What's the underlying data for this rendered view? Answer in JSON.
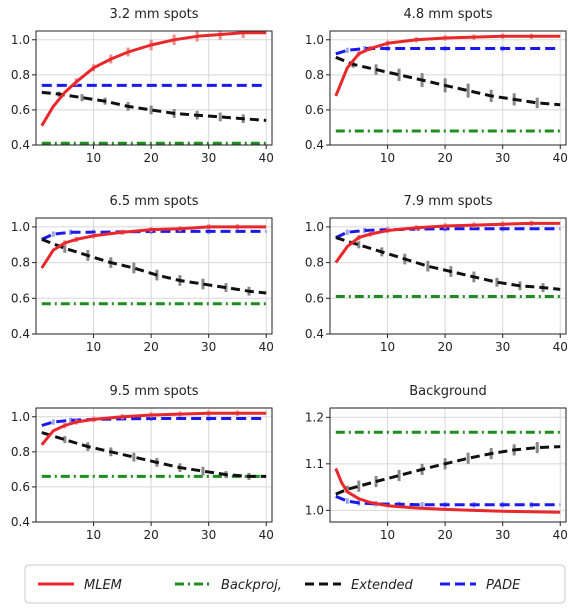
{
  "chart_data": [
    {
      "type": "line",
      "title": "3.2 mm spots",
      "xlim": [
        0,
        41
      ],
      "ylim": [
        0.4,
        1.05
      ],
      "xticks": [
        10,
        20,
        30,
        40
      ],
      "xtick_labels": [
        "10",
        "20",
        "30",
        "40"
      ],
      "yticks": [
        0.4,
        0.6,
        0.8,
        1.0
      ],
      "ytick_labels": [
        "0.4",
        "0.6",
        "0.8",
        "1.0"
      ],
      "grid": true,
      "series": [
        {
          "name": "MLEM",
          "x": [
            1,
            3,
            5,
            7,
            10,
            13,
            16,
            20,
            24,
            28,
            32,
            36,
            40
          ],
          "y": [
            0.51,
            0.62,
            0.7,
            0.76,
            0.84,
            0.89,
            0.93,
            0.97,
            1.0,
            1.02,
            1.03,
            1.04,
            1.04
          ],
          "err": [
            0,
            0,
            0,
            0.02,
            0.02,
            0.025,
            0.025,
            0.03,
            0.03,
            0.03,
            0.03,
            0.03,
            0
          ]
        },
        {
          "name": "Backproj,",
          "x": [
            1,
            40
          ],
          "y": [
            0.41,
            0.41
          ],
          "err": [
            0,
            0
          ]
        },
        {
          "name": "Extended",
          "x": [
            1,
            4,
            8,
            12,
            16,
            20,
            24,
            28,
            32,
            36,
            40
          ],
          "y": [
            0.7,
            0.69,
            0.67,
            0.65,
            0.62,
            0.6,
            0.58,
            0.57,
            0.56,
            0.55,
            0.54
          ],
          "err": [
            0,
            0.015,
            0.02,
            0.02,
            0.025,
            0.025,
            0.025,
            0.025,
            0.025,
            0.025,
            0
          ]
        },
        {
          "name": "PADE",
          "x": [
            1,
            40
          ],
          "y": [
            0.74,
            0.74
          ],
          "err": [
            0,
            0
          ]
        }
      ]
    },
    {
      "type": "line",
      "title": "4.8 mm spots",
      "xlim": [
        0,
        41
      ],
      "ylim": [
        0.4,
        1.05
      ],
      "xticks": [
        10,
        20,
        30,
        40
      ],
      "xtick_labels": [
        "10",
        "20",
        "30",
        "40"
      ],
      "yticks": [
        0.4,
        0.6,
        0.8,
        1.0
      ],
      "ytick_labels": [
        "0.4",
        "0.6",
        "0.8",
        "1.0"
      ],
      "grid": true,
      "series": [
        {
          "name": "MLEM",
          "x": [
            1,
            3,
            5,
            7,
            10,
            15,
            20,
            25,
            30,
            35,
            40
          ],
          "y": [
            0.68,
            0.84,
            0.92,
            0.95,
            0.98,
            1.0,
            1.01,
            1.015,
            1.02,
            1.02,
            1.02
          ],
          "err": [
            0,
            0,
            0.015,
            0.015,
            0.015,
            0.015,
            0.015,
            0.015,
            0.015,
            0.015,
            0
          ]
        },
        {
          "name": "Backproj,",
          "x": [
            1,
            40
          ],
          "y": [
            0.48,
            0.48
          ],
          "err": [
            0,
            0
          ]
        },
        {
          "name": "Extended",
          "x": [
            1,
            4,
            8,
            12,
            16,
            20,
            24,
            28,
            32,
            36,
            40
          ],
          "y": [
            0.9,
            0.86,
            0.83,
            0.8,
            0.77,
            0.74,
            0.71,
            0.68,
            0.66,
            0.64,
            0.63
          ],
          "err": [
            0,
            0.02,
            0.03,
            0.035,
            0.04,
            0.04,
            0.04,
            0.035,
            0.035,
            0.03,
            0
          ]
        },
        {
          "name": "PADE",
          "x": [
            1,
            3,
            6,
            10,
            20,
            30,
            40
          ],
          "y": [
            0.92,
            0.94,
            0.95,
            0.95,
            0.95,
            0.95,
            0.95
          ],
          "err": [
            0,
            0.015,
            0.015,
            0.015,
            0.015,
            0.015,
            0
          ]
        }
      ]
    },
    {
      "type": "line",
      "title": "6.5 mm spots",
      "xlim": [
        0,
        41
      ],
      "ylim": [
        0.4,
        1.05
      ],
      "xticks": [
        10,
        20,
        30,
        40
      ],
      "xtick_labels": [
        "10",
        "20",
        "30",
        "40"
      ],
      "yticks": [
        0.4,
        0.6,
        0.8,
        1.0
      ],
      "ytick_labels": [
        "0.4",
        "0.6",
        "0.8",
        "1.0"
      ],
      "grid": true,
      "series": [
        {
          "name": "MLEM",
          "x": [
            1,
            3,
            5,
            7,
            10,
            15,
            20,
            25,
            30,
            35,
            40
          ],
          "y": [
            0.77,
            0.87,
            0.91,
            0.93,
            0.95,
            0.97,
            0.985,
            0.99,
            1.0,
            1.0,
            1.0
          ],
          "err": [
            0,
            0,
            0.015,
            0.015,
            0.015,
            0.015,
            0.015,
            0.015,
            0.015,
            0.015,
            0
          ]
        },
        {
          "name": "Backproj,",
          "x": [
            1,
            40
          ],
          "y": [
            0.57,
            0.57
          ],
          "err": [
            0,
            0
          ]
        },
        {
          "name": "Extended",
          "x": [
            1,
            5,
            9,
            13,
            17,
            21,
            25,
            29,
            33,
            37,
            40
          ],
          "y": [
            0.93,
            0.88,
            0.84,
            0.8,
            0.77,
            0.73,
            0.7,
            0.68,
            0.66,
            0.64,
            0.63
          ],
          "err": [
            0,
            0.025,
            0.03,
            0.03,
            0.03,
            0.03,
            0.03,
            0.03,
            0.025,
            0.025,
            0
          ]
        },
        {
          "name": "PADE",
          "x": [
            1,
            3,
            6,
            10,
            20,
            30,
            40
          ],
          "y": [
            0.93,
            0.96,
            0.97,
            0.97,
            0.975,
            0.975,
            0.975
          ],
          "err": [
            0,
            0.015,
            0.015,
            0.015,
            0.015,
            0.015,
            0
          ]
        }
      ]
    },
    {
      "type": "line",
      "title": "7.9 mm spots",
      "xlim": [
        0,
        41
      ],
      "ylim": [
        0.4,
        1.05
      ],
      "xticks": [
        10,
        20,
        30,
        40
      ],
      "xtick_labels": [
        "10",
        "20",
        "30",
        "40"
      ],
      "yticks": [
        0.4,
        0.6,
        0.8,
        1.0
      ],
      "ytick_labels": [
        "0.4",
        "0.6",
        "0.8",
        "1.0"
      ],
      "grid": true,
      "series": [
        {
          "name": "MLEM",
          "x": [
            1,
            3,
            5,
            7,
            10,
            15,
            20,
            25,
            30,
            35,
            40
          ],
          "y": [
            0.8,
            0.89,
            0.94,
            0.96,
            0.98,
            0.995,
            1.005,
            1.01,
            1.015,
            1.02,
            1.02
          ],
          "err": [
            0,
            0,
            0.015,
            0.015,
            0.015,
            0.015,
            0.015,
            0.015,
            0.015,
            0.015,
            0
          ]
        },
        {
          "name": "Backproj,",
          "x": [
            1,
            40
          ],
          "y": [
            0.61,
            0.61
          ],
          "err": [
            0,
            0
          ]
        },
        {
          "name": "Extended",
          "x": [
            1,
            5,
            9,
            13,
            17,
            21,
            25,
            29,
            33,
            37,
            40
          ],
          "y": [
            0.94,
            0.9,
            0.86,
            0.82,
            0.78,
            0.75,
            0.72,
            0.69,
            0.67,
            0.66,
            0.65
          ],
          "err": [
            0,
            0.02,
            0.025,
            0.03,
            0.03,
            0.03,
            0.03,
            0.025,
            0.025,
            0.025,
            0
          ]
        },
        {
          "name": "PADE",
          "x": [
            1,
            3,
            6,
            10,
            20,
            30,
            40
          ],
          "y": [
            0.94,
            0.97,
            0.98,
            0.985,
            0.99,
            0.99,
            0.99
          ],
          "err": [
            0,
            0.015,
            0.015,
            0.015,
            0.015,
            0.015,
            0
          ]
        }
      ]
    },
    {
      "type": "line",
      "title": "9.5 mm spots",
      "xlim": [
        0,
        41
      ],
      "ylim": [
        0.4,
        1.05
      ],
      "xticks": [
        10,
        20,
        30,
        40
      ],
      "xtick_labels": [
        "10",
        "20",
        "30",
        "40"
      ],
      "yticks": [
        0.4,
        0.6,
        0.8,
        1.0
      ],
      "ytick_labels": [
        "0.4",
        "0.6",
        "0.8",
        "1.0"
      ],
      "grid": true,
      "series": [
        {
          "name": "MLEM",
          "x": [
            1,
            3,
            5,
            7,
            10,
            15,
            20,
            25,
            30,
            35,
            40
          ],
          "y": [
            0.84,
            0.92,
            0.95,
            0.97,
            0.985,
            1.0,
            1.01,
            1.015,
            1.02,
            1.02,
            1.02
          ],
          "err": [
            0,
            0,
            0.015,
            0.015,
            0.015,
            0.015,
            0.015,
            0.015,
            0.015,
            0.015,
            0
          ]
        },
        {
          "name": "Backproj,",
          "x": [
            1,
            40
          ],
          "y": [
            0.66,
            0.66
          ],
          "err": [
            0,
            0
          ]
        },
        {
          "name": "Extended",
          "x": [
            1,
            5,
            9,
            13,
            17,
            21,
            25,
            29,
            33,
            37,
            40
          ],
          "y": [
            0.91,
            0.87,
            0.83,
            0.8,
            0.77,
            0.74,
            0.71,
            0.69,
            0.67,
            0.66,
            0.66
          ],
          "err": [
            0,
            0.02,
            0.025,
            0.025,
            0.025,
            0.025,
            0.025,
            0.025,
            0.02,
            0.02,
            0
          ]
        },
        {
          "name": "PADE",
          "x": [
            1,
            3,
            6,
            10,
            20,
            30,
            40
          ],
          "y": [
            0.95,
            0.97,
            0.98,
            0.985,
            0.99,
            0.99,
            0.99
          ],
          "err": [
            0,
            0.015,
            0.015,
            0.015,
            0.015,
            0.015,
            0
          ]
        }
      ]
    },
    {
      "type": "line",
      "title": "Background",
      "xlim": [
        0,
        41
      ],
      "ylim": [
        0.975,
        1.22
      ],
      "xticks": [
        10,
        20,
        30,
        40
      ],
      "xtick_labels": [
        "10",
        "20",
        "30",
        "40"
      ],
      "yticks": [
        1.0,
        1.1,
        1.2
      ],
      "ytick_labels": [
        "1.0",
        "1.1",
        "1.2"
      ],
      "grid": true,
      "series": [
        {
          "name": "MLEM",
          "x": [
            1,
            2,
            3,
            5,
            7,
            10,
            15,
            20,
            25,
            30,
            35,
            40
          ],
          "y": [
            1.09,
            1.06,
            1.04,
            1.025,
            1.017,
            1.01,
            1.005,
            1.002,
            1.0,
            0.998,
            0.997,
            0.996
          ],
          "err": [
            0,
            0,
            0,
            0,
            0,
            0,
            0,
            0,
            0,
            0,
            0,
            0
          ]
        },
        {
          "name": "Backproj,",
          "x": [
            1,
            40
          ],
          "y": [
            1.168,
            1.168
          ],
          "err": [
            0,
            0
          ]
        },
        {
          "name": "Extended",
          "x": [
            1,
            3,
            5,
            8,
            12,
            16,
            20,
            24,
            28,
            32,
            36,
            40
          ],
          "y": [
            1.035,
            1.045,
            1.052,
            1.062,
            1.075,
            1.088,
            1.1,
            1.112,
            1.122,
            1.13,
            1.135,
            1.137
          ],
          "err": [
            0,
            0.008,
            0.012,
            0.012,
            0.012,
            0.012,
            0.012,
            0.012,
            0.012,
            0.012,
            0.012,
            0
          ]
        },
        {
          "name": "PADE",
          "x": [
            1,
            3,
            5,
            8,
            12,
            16,
            20,
            25,
            30,
            35,
            40
          ],
          "y": [
            1.03,
            1.02,
            1.016,
            1.014,
            1.013,
            1.012,
            1.012,
            1.012,
            1.012,
            1.012,
            1.012
          ],
          "err": [
            0,
            0.006,
            0.006,
            0.006,
            0.006,
            0.006,
            0.006,
            0.006,
            0.006,
            0.006,
            0
          ]
        }
      ]
    }
  ],
  "legend": {
    "placement": "bottom",
    "entries": [
      {
        "label": "MLEM",
        "color": "#e8282b",
        "dash": "solid"
      },
      {
        "label": "Backproj,",
        "color": "#1f8c1f",
        "dash": "dashdot"
      },
      {
        "label": "Extended",
        "color": "#111111",
        "dash": "dashed"
      },
      {
        "label": "PADE",
        "color": "#1a1aee",
        "dash": "dashed"
      }
    ]
  },
  "colors": {
    "MLEM": "#e8282b",
    "Backproj,": "#1f8c1f",
    "Extended": "#111111",
    "PADE": "#1a1aee",
    "grid": "#d8d8d8",
    "MLEM_err": "#f08a8a",
    "Extended_err": "#888888",
    "PADE_err": "#9aa6ee"
  }
}
